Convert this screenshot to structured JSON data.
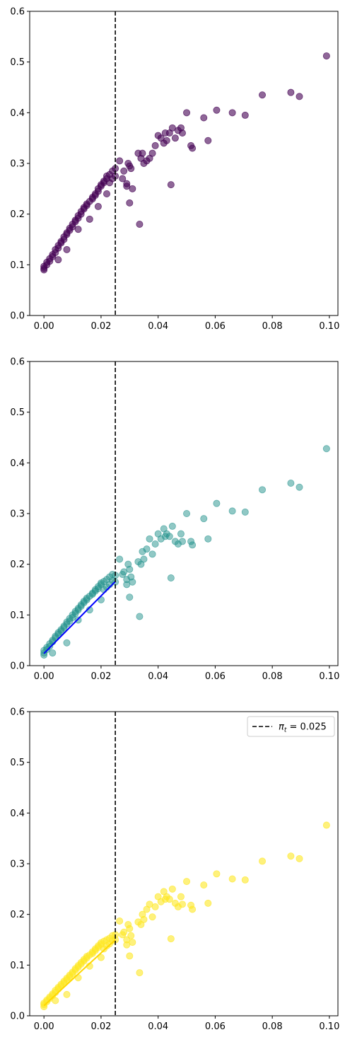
{
  "chart_data": [
    {
      "type": "scatter",
      "title": "",
      "xlabel": "",
      "ylabel": "",
      "xlim": [
        -0.005,
        0.103
      ],
      "ylim": [
        0,
        0.6
      ],
      "xticks": [
        0.0,
        0.02,
        0.04,
        0.06,
        0.08,
        0.1
      ],
      "xtick_labels": [
        "0.00",
        "0.02",
        "0.04",
        "0.06",
        "0.08",
        "0.10"
      ],
      "yticks": [
        0.0,
        0.1,
        0.2,
        0.3,
        0.4,
        0.5,
        0.6
      ],
      "ytick_labels": [
        "0.0",
        "0.1",
        "0.2",
        "0.3",
        "0.4",
        "0.5",
        "0.6"
      ],
      "grid": false,
      "color": "#440154",
      "alpha": 0.6,
      "vline": {
        "x": 0.025,
        "style": "dashed",
        "color": "#000000"
      },
      "points": {
        "x": [
          0.0,
          0.0,
          0.0,
          0.001,
          0.001,
          0.002,
          0.002,
          0.003,
          0.003,
          0.004,
          0.004,
          0.005,
          0.005,
          0.006,
          0.006,
          0.007,
          0.007,
          0.008,
          0.008,
          0.009,
          0.009,
          0.01,
          0.01,
          0.011,
          0.011,
          0.012,
          0.012,
          0.013,
          0.013,
          0.014,
          0.014,
          0.015,
          0.015,
          0.016,
          0.017,
          0.017,
          0.018,
          0.018,
          0.019,
          0.019,
          0.02,
          0.02,
          0.021,
          0.021,
          0.022,
          0.022,
          0.023,
          0.023,
          0.024,
          0.024,
          0.025,
          0.025,
          0.005,
          0.008,
          0.012,
          0.016,
          0.019,
          0.022,
          0.0265,
          0.0275,
          0.028,
          0.029,
          0.029,
          0.0295,
          0.03,
          0.031,
          0.0305,
          0.033,
          0.034,
          0.0345,
          0.035,
          0.036,
          0.037,
          0.038,
          0.039,
          0.04,
          0.041,
          0.042,
          0.0425,
          0.043,
          0.044,
          0.045,
          0.046,
          0.047,
          0.048,
          0.0485,
          0.05,
          0.0515,
          0.052,
          0.056,
          0.0575,
          0.0605,
          0.066,
          0.0705,
          0.0765,
          0.0865,
          0.0895,
          0.099,
          0.0335,
          0.0445,
          0.03
        ],
        "y": [
          0.09,
          0.093,
          0.097,
          0.1,
          0.105,
          0.107,
          0.112,
          0.116,
          0.12,
          0.124,
          0.13,
          0.133,
          0.138,
          0.143,
          0.146,
          0.15,
          0.155,
          0.16,
          0.163,
          0.168,
          0.172,
          0.175,
          0.18,
          0.185,
          0.188,
          0.192,
          0.197,
          0.2,
          0.205,
          0.21,
          0.213,
          0.217,
          0.22,
          0.225,
          0.23,
          0.233,
          0.237,
          0.24,
          0.245,
          0.25,
          0.255,
          0.258,
          0.262,
          0.265,
          0.27,
          0.275,
          0.278,
          0.262,
          0.285,
          0.27,
          0.29,
          0.275,
          0.11,
          0.13,
          0.17,
          0.19,
          0.215,
          0.24,
          0.305,
          0.27,
          0.285,
          0.255,
          0.26,
          0.3,
          0.295,
          0.25,
          0.29,
          0.32,
          0.31,
          0.32,
          0.3,
          0.305,
          0.31,
          0.32,
          0.335,
          0.355,
          0.35,
          0.34,
          0.36,
          0.345,
          0.36,
          0.37,
          0.35,
          0.365,
          0.37,
          0.36,
          0.4,
          0.335,
          0.33,
          0.39,
          0.345,
          0.405,
          0.4,
          0.395,
          0.435,
          0.44,
          0.432,
          0.512,
          0.18,
          0.258,
          0.222
        ]
      }
    },
    {
      "type": "scatter",
      "title": "",
      "xlabel": "",
      "ylabel": "",
      "xlim": [
        -0.005,
        0.103
      ],
      "ylim": [
        0,
        0.6
      ],
      "xticks": [
        0.0,
        0.02,
        0.04,
        0.06,
        0.08,
        0.1
      ],
      "xtick_labels": [
        "0.00",
        "0.02",
        "0.04",
        "0.06",
        "0.08",
        "0.10"
      ],
      "yticks": [
        0.0,
        0.1,
        0.2,
        0.3,
        0.4,
        0.5,
        0.6
      ],
      "ytick_labels": [
        "0.0",
        "0.1",
        "0.2",
        "0.3",
        "0.4",
        "0.5",
        "0.6"
      ],
      "grid": false,
      "color": "#21918c",
      "alpha": 0.5,
      "vline": {
        "x": 0.025,
        "style": "dashed",
        "color": "#000000"
      },
      "fit_line": {
        "x": [
          0.0,
          0.025
        ],
        "y": [
          0.024,
          0.166
        ],
        "color": "#0000ff"
      },
      "points": {
        "x": [
          0.0,
          0.0,
          0.0,
          0.001,
          0.001,
          0.002,
          0.002,
          0.003,
          0.003,
          0.004,
          0.004,
          0.005,
          0.005,
          0.006,
          0.006,
          0.007,
          0.007,
          0.008,
          0.008,
          0.009,
          0.009,
          0.01,
          0.01,
          0.011,
          0.011,
          0.012,
          0.012,
          0.013,
          0.013,
          0.014,
          0.014,
          0.015,
          0.015,
          0.016,
          0.017,
          0.017,
          0.018,
          0.018,
          0.019,
          0.019,
          0.02,
          0.02,
          0.021,
          0.021,
          0.022,
          0.022,
          0.023,
          0.023,
          0.024,
          0.024,
          0.025,
          0.025,
          0.003,
          0.008,
          0.012,
          0.016,
          0.02,
          0.0265,
          0.0275,
          0.028,
          0.029,
          0.029,
          0.0295,
          0.03,
          0.031,
          0.0305,
          0.033,
          0.034,
          0.0345,
          0.035,
          0.036,
          0.037,
          0.038,
          0.039,
          0.04,
          0.041,
          0.042,
          0.0425,
          0.043,
          0.044,
          0.045,
          0.046,
          0.047,
          0.048,
          0.0485,
          0.05,
          0.0515,
          0.052,
          0.056,
          0.0575,
          0.0605,
          0.066,
          0.0705,
          0.0765,
          0.0865,
          0.0895,
          0.099,
          0.0335,
          0.0445,
          0.03
        ],
        "y": [
          0.021,
          0.025,
          0.03,
          0.032,
          0.036,
          0.038,
          0.043,
          0.047,
          0.05,
          0.055,
          0.058,
          0.062,
          0.065,
          0.068,
          0.071,
          0.075,
          0.078,
          0.082,
          0.086,
          0.088,
          0.093,
          0.095,
          0.1,
          0.103,
          0.107,
          0.11,
          0.113,
          0.117,
          0.12,
          0.124,
          0.127,
          0.13,
          0.133,
          0.137,
          0.141,
          0.143,
          0.147,
          0.15,
          0.152,
          0.156,
          0.16,
          0.163,
          0.166,
          0.15,
          0.17,
          0.155,
          0.175,
          0.16,
          0.168,
          0.18,
          0.178,
          0.165,
          0.025,
          0.045,
          0.09,
          0.11,
          0.13,
          0.21,
          0.18,
          0.185,
          0.16,
          0.17,
          0.2,
          0.19,
          0.165,
          0.175,
          0.205,
          0.2,
          0.225,
          0.21,
          0.23,
          0.25,
          0.22,
          0.24,
          0.26,
          0.25,
          0.27,
          0.255,
          0.26,
          0.255,
          0.275,
          0.245,
          0.24,
          0.26,
          0.245,
          0.3,
          0.245,
          0.238,
          0.29,
          0.25,
          0.32,
          0.305,
          0.303,
          0.347,
          0.36,
          0.352,
          0.428,
          0.097,
          0.173,
          0.135
        ]
      }
    },
    {
      "type": "scatter",
      "title": "",
      "xlabel": "",
      "ylabel": "",
      "xlim": [
        -0.005,
        0.103
      ],
      "ylim": [
        0,
        0.6
      ],
      "xticks": [
        0.0,
        0.02,
        0.04,
        0.06,
        0.08,
        0.1
      ],
      "xtick_labels": [
        "0.00",
        "0.02",
        "0.04",
        "0.06",
        "0.08",
        "0.10"
      ],
      "yticks": [
        0.0,
        0.1,
        0.2,
        0.3,
        0.4,
        0.5,
        0.6
      ],
      "ytick_labels": [
        "0.0",
        "0.1",
        "0.2",
        "0.3",
        "0.4",
        "0.5",
        "0.6"
      ],
      "grid": false,
      "color": "#fde725",
      "alpha": 0.6,
      "vline": {
        "x": 0.025,
        "style": "dashed",
        "color": "#000000"
      },
      "fit_line": {
        "x": [
          0.0,
          0.025
        ],
        "y": [
          0.02,
          0.15
        ],
        "color": "#ffd700"
      },
      "legend": {
        "position": "upper right",
        "label_prefix": "π",
        "label_sub": "t",
        "label_rest": " = 0.025"
      },
      "points": {
        "x": [
          0.0,
          0.0,
          0.0,
          0.001,
          0.001,
          0.002,
          0.002,
          0.003,
          0.003,
          0.004,
          0.004,
          0.005,
          0.005,
          0.006,
          0.006,
          0.007,
          0.007,
          0.008,
          0.008,
          0.009,
          0.009,
          0.01,
          0.01,
          0.011,
          0.011,
          0.012,
          0.012,
          0.013,
          0.013,
          0.014,
          0.014,
          0.015,
          0.015,
          0.016,
          0.017,
          0.017,
          0.018,
          0.018,
          0.019,
          0.019,
          0.02,
          0.02,
          0.021,
          0.021,
          0.022,
          0.022,
          0.023,
          0.023,
          0.024,
          0.024,
          0.025,
          0.025,
          0.004,
          0.008,
          0.012,
          0.016,
          0.02,
          0.0265,
          0.0275,
          0.028,
          0.029,
          0.029,
          0.0295,
          0.03,
          0.031,
          0.0305,
          0.033,
          0.034,
          0.0345,
          0.035,
          0.036,
          0.037,
          0.038,
          0.039,
          0.04,
          0.041,
          0.042,
          0.0425,
          0.043,
          0.044,
          0.045,
          0.046,
          0.047,
          0.048,
          0.0485,
          0.05,
          0.0515,
          0.052,
          0.056,
          0.0575,
          0.0605,
          0.066,
          0.0705,
          0.0765,
          0.0865,
          0.0895,
          0.099,
          0.0335,
          0.0445,
          0.03
        ],
        "y": [
          0.018,
          0.022,
          0.025,
          0.028,
          0.031,
          0.034,
          0.037,
          0.04,
          0.043,
          0.046,
          0.05,
          0.053,
          0.056,
          0.059,
          0.062,
          0.065,
          0.068,
          0.071,
          0.074,
          0.077,
          0.08,
          0.083,
          0.086,
          0.09,
          0.093,
          0.096,
          0.099,
          0.102,
          0.105,
          0.108,
          0.111,
          0.114,
          0.117,
          0.12,
          0.123,
          0.126,
          0.129,
          0.132,
          0.135,
          0.138,
          0.141,
          0.144,
          0.147,
          0.132,
          0.15,
          0.138,
          0.153,
          0.142,
          0.148,
          0.158,
          0.16,
          0.15,
          0.03,
          0.042,
          0.075,
          0.098,
          0.115,
          0.187,
          0.16,
          0.165,
          0.14,
          0.15,
          0.18,
          0.172,
          0.145,
          0.158,
          0.185,
          0.18,
          0.2,
          0.19,
          0.21,
          0.22,
          0.195,
          0.215,
          0.235,
          0.225,
          0.245,
          0.23,
          0.235,
          0.23,
          0.25,
          0.222,
          0.215,
          0.235,
          0.22,
          0.265,
          0.218,
          0.21,
          0.258,
          0.222,
          0.28,
          0.27,
          0.268,
          0.305,
          0.315,
          0.31,
          0.376,
          0.085,
          0.152,
          0.118
        ]
      }
    }
  ]
}
